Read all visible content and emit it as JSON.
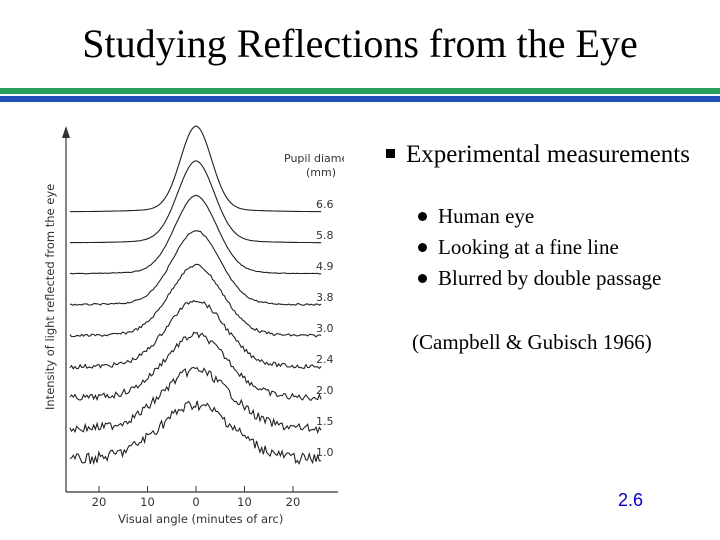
{
  "slide": {
    "title": "Studying Reflections from the Eye",
    "number": "2.6",
    "colors": {
      "rule_green": "#2aa060",
      "rule_blue": "#2050b8",
      "bullet_text": "#000000",
      "slide_number": "#0000cc"
    }
  },
  "content": {
    "bullet": "Experimental measurements",
    "sub_bullets": [
      "Human eye",
      "Looking at a fine line",
      "Blurred by double passage"
    ],
    "citation": "(Campbell & Gubisch 1966)"
  },
  "figure": {
    "ylabel": "Intensity of light reflected from the eye",
    "xlabel": "Visual angle (minutes of arc)",
    "legend_title_line1": "Pupil diameter",
    "legend_title_line2": "(mm)",
    "x_ticks": [
      "20",
      "10",
      "0",
      "10",
      "20"
    ],
    "pupil_diameters": [
      "6.6",
      "5.8",
      "4.9",
      "3.8",
      "3.0",
      "2.4",
      "2.0",
      "1.5",
      "1.0"
    ]
  }
}
